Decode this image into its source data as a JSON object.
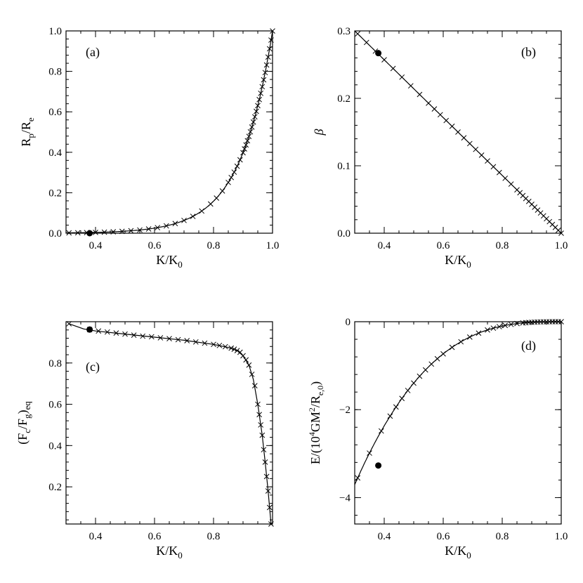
{
  "chart_data": [
    {
      "id": "a",
      "type": "line",
      "panel_label": "(a)",
      "xlabel": {
        "main": "K/K",
        "sub": "0"
      },
      "ylabel": {
        "main": "R",
        "sub": "p",
        "mid": "/R",
        "sub2": "e"
      },
      "xlim": [
        0.3,
        1.0
      ],
      "ylim": [
        0.0,
        1.0
      ],
      "xticks": [
        0.4,
        0.6,
        0.8,
        1.0
      ],
      "xtick_labels": [
        "0.4",
        "0.6",
        "0.8",
        "1.0"
      ],
      "yticks": [
        0.0,
        0.2,
        0.4,
        0.6,
        0.8,
        1.0
      ],
      "ytick_labels": [
        "0.0",
        "0.2",
        "0.4",
        "0.6",
        "0.8",
        "1.0"
      ],
      "curve": {
        "func": "exp",
        "a": 0.0001,
        "b": 9.21,
        "offset": 0.0
      },
      "markers_x": [
        0.31,
        0.34,
        0.37,
        0.4,
        0.43,
        0.46,
        0.49,
        0.52,
        0.55,
        0.58,
        0.61,
        0.64,
        0.67,
        0.7,
        0.73,
        0.76,
        0.79,
        0.81,
        0.83,
        0.85,
        0.86,
        0.87,
        0.88,
        0.89,
        0.9,
        0.905,
        0.91,
        0.915,
        0.92,
        0.925,
        0.93,
        0.935,
        0.94,
        0.945,
        0.95,
        0.955,
        0.96,
        0.965,
        0.97,
        0.975,
        0.98,
        0.985,
        0.99,
        0.995,
        1.0
      ],
      "special_point": {
        "x": 0.38,
        "y": 0.0
      }
    },
    {
      "id": "b",
      "type": "line",
      "panel_label": "(b)",
      "xlabel": {
        "main": "K/K",
        "sub": "0"
      },
      "ylabel": {
        "main": "β"
      },
      "xlim": [
        0.3,
        1.0
      ],
      "ylim": [
        0.0,
        0.3
      ],
      "xticks": [
        0.4,
        0.6,
        0.8,
        1.0
      ],
      "xtick_labels": [
        "0.4",
        "0.6",
        "0.8",
        "1.0"
      ],
      "yticks": [
        0.0,
        0.1,
        0.2,
        0.3
      ],
      "ytick_labels": [
        "0.0",
        "0.1",
        "0.2",
        "0.3"
      ],
      "curve": {
        "func": "linear",
        "x0": 0.3,
        "y0": 0.3,
        "x1": 1.0,
        "y1": 0.0
      },
      "markers_x": [
        0.31,
        0.34,
        0.37,
        0.4,
        0.43,
        0.46,
        0.49,
        0.52,
        0.55,
        0.57,
        0.59,
        0.61,
        0.63,
        0.65,
        0.67,
        0.69,
        0.71,
        0.73,
        0.75,
        0.77,
        0.79,
        0.81,
        0.83,
        0.85,
        0.86,
        0.87,
        0.88,
        0.89,
        0.9,
        0.91,
        0.92,
        0.93,
        0.94,
        0.95,
        0.96,
        0.97,
        0.98,
        0.99,
        1.0
      ],
      "special_point": {
        "x": 0.38,
        "y": 0.267
      }
    },
    {
      "id": "c",
      "type": "line",
      "panel_label": "(c)",
      "xlabel": {
        "main": "K/K",
        "sub": "0"
      },
      "ylabel": {
        "main": "(F",
        "sub": "c",
        "mid": "/F",
        "sub2": "g",
        "end": ")",
        "sub3": "eq"
      },
      "xlim": [
        0.3,
        1.0
      ],
      "ylim": [
        0.02,
        1.0
      ],
      "xticks": [
        0.4,
        0.6,
        0.8
      ],
      "xtick_labels": [
        "0.4",
        "0.6",
        "0.8"
      ],
      "yticks": [
        0.2,
        0.4,
        0.6,
        0.8
      ],
      "ytick_labels": [
        "0.2",
        "0.4",
        "0.6",
        "0.8"
      ],
      "curve_points": [
        [
          0.31,
          0.99
        ],
        [
          0.36,
          0.965
        ],
        [
          0.4,
          0.955
        ],
        [
          0.5,
          0.94
        ],
        [
          0.6,
          0.925
        ],
        [
          0.7,
          0.91
        ],
        [
          0.8,
          0.89
        ],
        [
          0.85,
          0.875
        ],
        [
          0.88,
          0.86
        ],
        [
          0.9,
          0.835
        ],
        [
          0.92,
          0.79
        ],
        [
          0.935,
          0.72
        ],
        [
          0.95,
          0.6
        ],
        [
          0.965,
          0.45
        ],
        [
          0.975,
          0.32
        ],
        [
          0.985,
          0.18
        ],
        [
          0.99,
          0.1
        ],
        [
          0.995,
          0.02
        ]
      ],
      "markers": [
        [
          0.31,
          0.99
        ],
        [
          0.38,
          0.962
        ],
        [
          0.41,
          0.955
        ],
        [
          0.44,
          0.95
        ],
        [
          0.47,
          0.945
        ],
        [
          0.5,
          0.94
        ],
        [
          0.53,
          0.935
        ],
        [
          0.56,
          0.93
        ],
        [
          0.59,
          0.927
        ],
        [
          0.62,
          0.922
        ],
        [
          0.65,
          0.918
        ],
        [
          0.68,
          0.913
        ],
        [
          0.71,
          0.908
        ],
        [
          0.74,
          0.902
        ],
        [
          0.77,
          0.896
        ],
        [
          0.8,
          0.89
        ],
        [
          0.82,
          0.885
        ],
        [
          0.84,
          0.879
        ],
        [
          0.86,
          0.872
        ],
        [
          0.87,
          0.867
        ],
        [
          0.88,
          0.86
        ],
        [
          0.89,
          0.852
        ],
        [
          0.9,
          0.835
        ],
        [
          0.91,
          0.815
        ],
        [
          0.92,
          0.79
        ],
        [
          0.93,
          0.745
        ],
        [
          0.94,
          0.69
        ],
        [
          0.95,
          0.6
        ],
        [
          0.955,
          0.55
        ],
        [
          0.96,
          0.5
        ],
        [
          0.965,
          0.45
        ],
        [
          0.97,
          0.38
        ],
        [
          0.975,
          0.32
        ],
        [
          0.98,
          0.25
        ],
        [
          0.985,
          0.18
        ],
        [
          0.99,
          0.1
        ],
        [
          0.995,
          0.02
        ]
      ],
      "special_point": {
        "x": 0.38,
        "y": 0.962
      }
    },
    {
      "id": "d",
      "type": "line",
      "panel_label": "(d)",
      "xlabel": {
        "main": "K/K",
        "sub": "0"
      },
      "ylabel": {
        "main": "E/(10",
        "sup": "4",
        "mid": "GM",
        "sup2": "2",
        "end": "/R",
        "sub": "e,0",
        "tail": ")"
      },
      "xlim": [
        0.3,
        1.0
      ],
      "ylim": [
        -4.6,
        0.0
      ],
      "xticks": [
        0.4,
        0.6,
        0.8,
        1.0
      ],
      "xtick_labels": [
        "0.4",
        "0.6",
        "0.8",
        "1.0"
      ],
      "yticks": [
        -4,
        -2,
        0
      ],
      "ytick_labels": [
        "−4",
        "−2",
        "0"
      ],
      "curve": {
        "func": "poly",
        "a": -10.42,
        "p": 2.9
      },
      "markers_x": [
        0.31,
        0.35,
        0.39,
        0.42,
        0.44,
        0.46,
        0.48,
        0.5,
        0.52,
        0.54,
        0.56,
        0.58,
        0.6,
        0.63,
        0.66,
        0.69,
        0.72,
        0.75,
        0.77,
        0.79,
        0.81,
        0.83,
        0.85,
        0.87,
        0.88,
        0.89,
        0.9,
        0.91,
        0.92,
        0.93,
        0.94,
        0.95,
        0.96,
        0.97,
        0.98,
        0.99,
        1.0
      ],
      "special_point": {
        "x": 0.38,
        "y": -3.27
      }
    }
  ]
}
